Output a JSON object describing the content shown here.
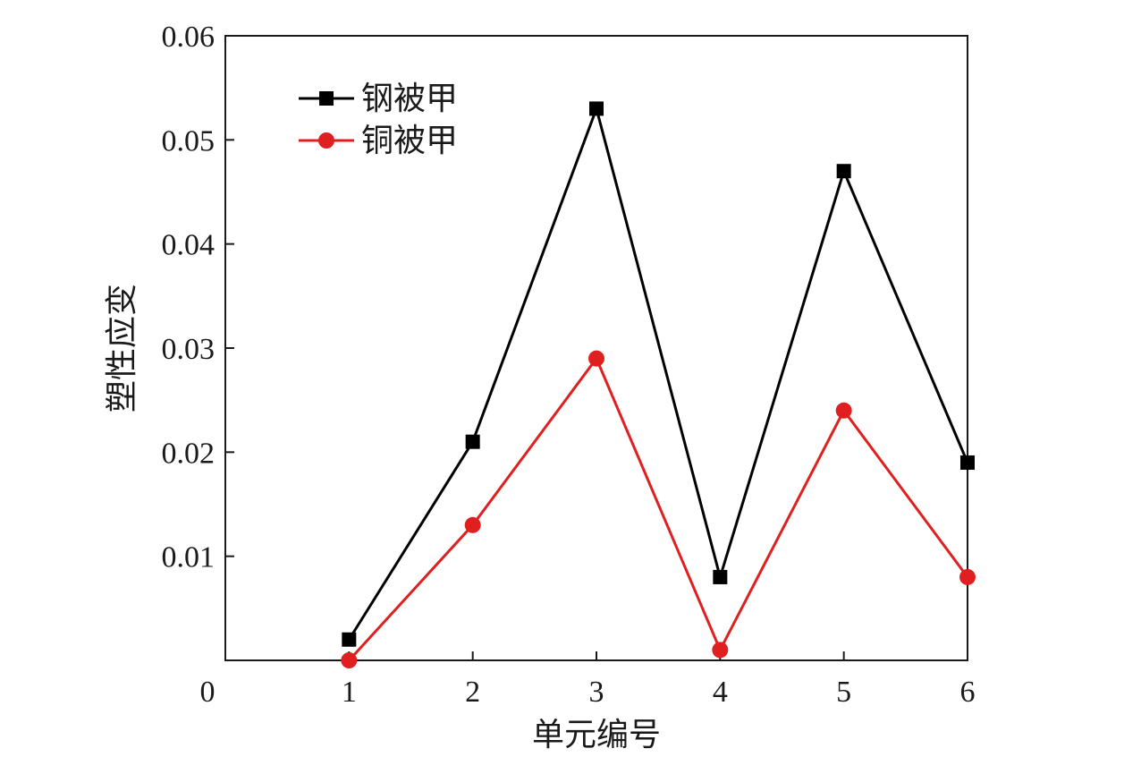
{
  "chart_data": {
    "type": "line",
    "title": "",
    "xlabel": "单元编号",
    "ylabel": "塑性应变",
    "x_ticks": [
      "0",
      "1",
      "2",
      "3",
      "4",
      "5",
      "6"
    ],
    "y_ticks": [
      "0.01",
      "0.02",
      "0.03",
      "0.04",
      "0.05",
      "0.06"
    ],
    "xlim": [
      0,
      6
    ],
    "ylim": [
      0,
      0.06
    ],
    "grid": false,
    "legend_position": "top-left",
    "x": [
      1,
      2,
      3,
      4,
      5,
      6
    ],
    "series": [
      {
        "name": "钢被甲",
        "color": "#000000",
        "marker": "square",
        "values": [
          0.002,
          0.021,
          0.053,
          0.008,
          0.047,
          0.019
        ]
      },
      {
        "name": "铜被甲",
        "color": "#e02020",
        "marker": "circle",
        "values": [
          0.0,
          0.013,
          0.029,
          0.001,
          0.024,
          0.008
        ]
      }
    ]
  }
}
